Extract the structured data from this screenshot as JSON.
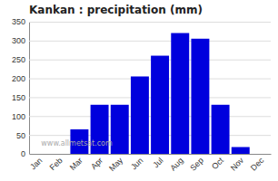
{
  "chart_data": {
    "type": "bar",
    "title": "Kankan : precipitation (mm)",
    "categories": [
      "Jan",
      "Feb",
      "Mar",
      "Apr",
      "May",
      "Jun",
      "Jul",
      "Aug",
      "Sep",
      "Oct",
      "Nov",
      "Dec"
    ],
    "values": [
      0,
      0,
      65,
      130,
      130,
      205,
      260,
      320,
      305,
      130,
      18,
      0
    ],
    "color": "#0000dd",
    "ylim": [
      0,
      350
    ],
    "yticks": [
      0,
      50,
      100,
      150,
      200,
      250,
      300,
      350
    ],
    "grid": true,
    "annotation": "www.allmetsat.com"
  }
}
